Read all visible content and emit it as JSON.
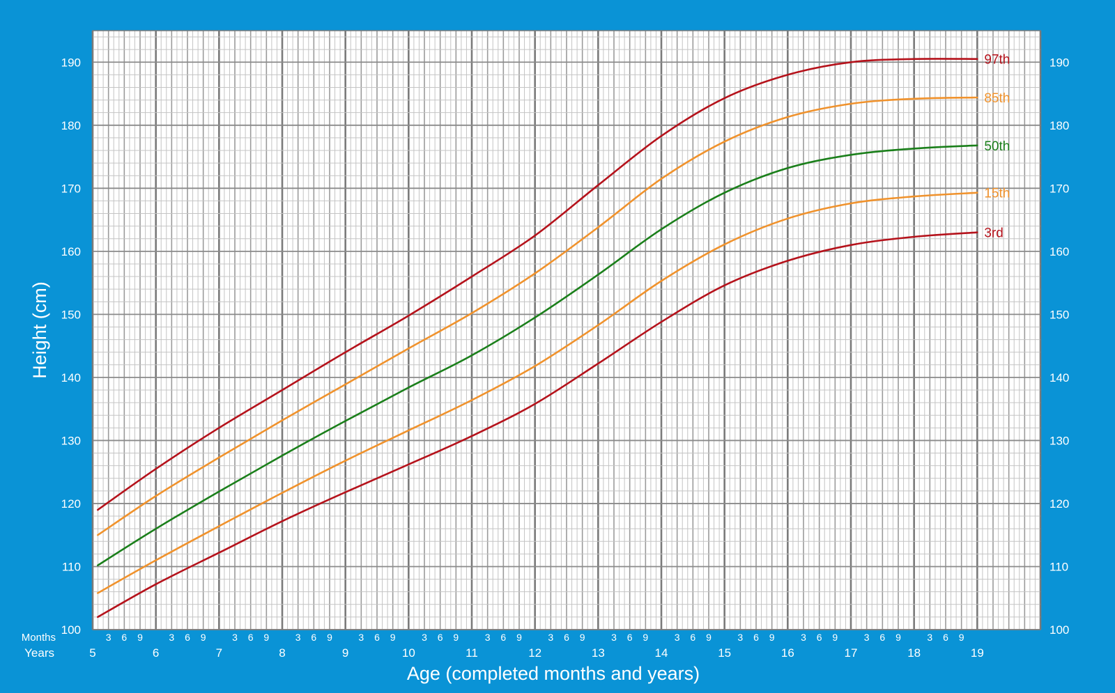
{
  "chart_data": {
    "type": "line",
    "title": "",
    "xlabel": "Age (completed months and years)",
    "ylabel": "Height (cm)",
    "xlim": [
      5,
      20
    ],
    "ylim": [
      100,
      195
    ],
    "grid": true,
    "x_ticks_years": [
      "5",
      "6",
      "7",
      "8",
      "9",
      "10",
      "11",
      "12",
      "13",
      "14",
      "15",
      "16",
      "17",
      "18",
      "19"
    ],
    "x_ticks_months": [
      "3",
      "6",
      "9"
    ],
    "x_row_labels": {
      "months": "Months",
      "years": "Years"
    },
    "y_ticks": [
      "100",
      "110",
      "120",
      "130",
      "140",
      "150",
      "160",
      "170",
      "180",
      "190"
    ],
    "legend_placement": "right end of curves",
    "series": [
      {
        "name": "97th",
        "color": "#b5121b",
        "x": [
          5.08,
          6,
          7,
          8,
          9,
          10,
          11,
          12,
          13,
          14,
          15,
          16,
          17,
          18,
          19
        ],
        "y": [
          119,
          125.5,
          132,
          138,
          144,
          149.8,
          156,
          162.5,
          170.5,
          178.3,
          184.3,
          188,
          190,
          190.5,
          190.5
        ]
      },
      {
        "name": "85th",
        "color": "#f0922c",
        "x": [
          5.08,
          6,
          7,
          8,
          9,
          10,
          11,
          12,
          13,
          14,
          15,
          16,
          17,
          18,
          19
        ],
        "y": [
          115,
          121.2,
          127.3,
          133.2,
          138.9,
          144.6,
          150.2,
          156.5,
          163.8,
          171.5,
          177.4,
          181.3,
          183.4,
          184.2,
          184.4
        ]
      },
      {
        "name": "50th",
        "color": "#1a7f1a",
        "x": [
          5.08,
          6,
          7,
          8,
          9,
          10,
          11,
          12,
          13,
          14,
          15,
          16,
          17,
          18,
          19
        ],
        "y": [
          110.2,
          116,
          121.9,
          127.6,
          133.1,
          138.4,
          143.5,
          149.5,
          156.3,
          163.5,
          169.3,
          173.2,
          175.3,
          176.3,
          176.8
        ]
      },
      {
        "name": "15th",
        "color": "#f0922c",
        "x": [
          5.08,
          6,
          7,
          8,
          9,
          10,
          11,
          12,
          13,
          14,
          15,
          16,
          17,
          18,
          19
        ],
        "y": [
          105.8,
          111,
          116.4,
          121.7,
          126.8,
          131.6,
          136.4,
          141.8,
          148.3,
          155.3,
          161.1,
          165.2,
          167.6,
          168.7,
          169.3
        ]
      },
      {
        "name": "3rd",
        "color": "#b5121b",
        "x": [
          5.08,
          6,
          7,
          8,
          9,
          10,
          11,
          12,
          13,
          14,
          15,
          16,
          17,
          18,
          19
        ],
        "y": [
          102,
          107.2,
          112.2,
          117.2,
          121.8,
          126.2,
          130.7,
          135.8,
          142.2,
          148.8,
          154.6,
          158.5,
          161,
          162.3,
          163
        ]
      }
    ]
  }
}
